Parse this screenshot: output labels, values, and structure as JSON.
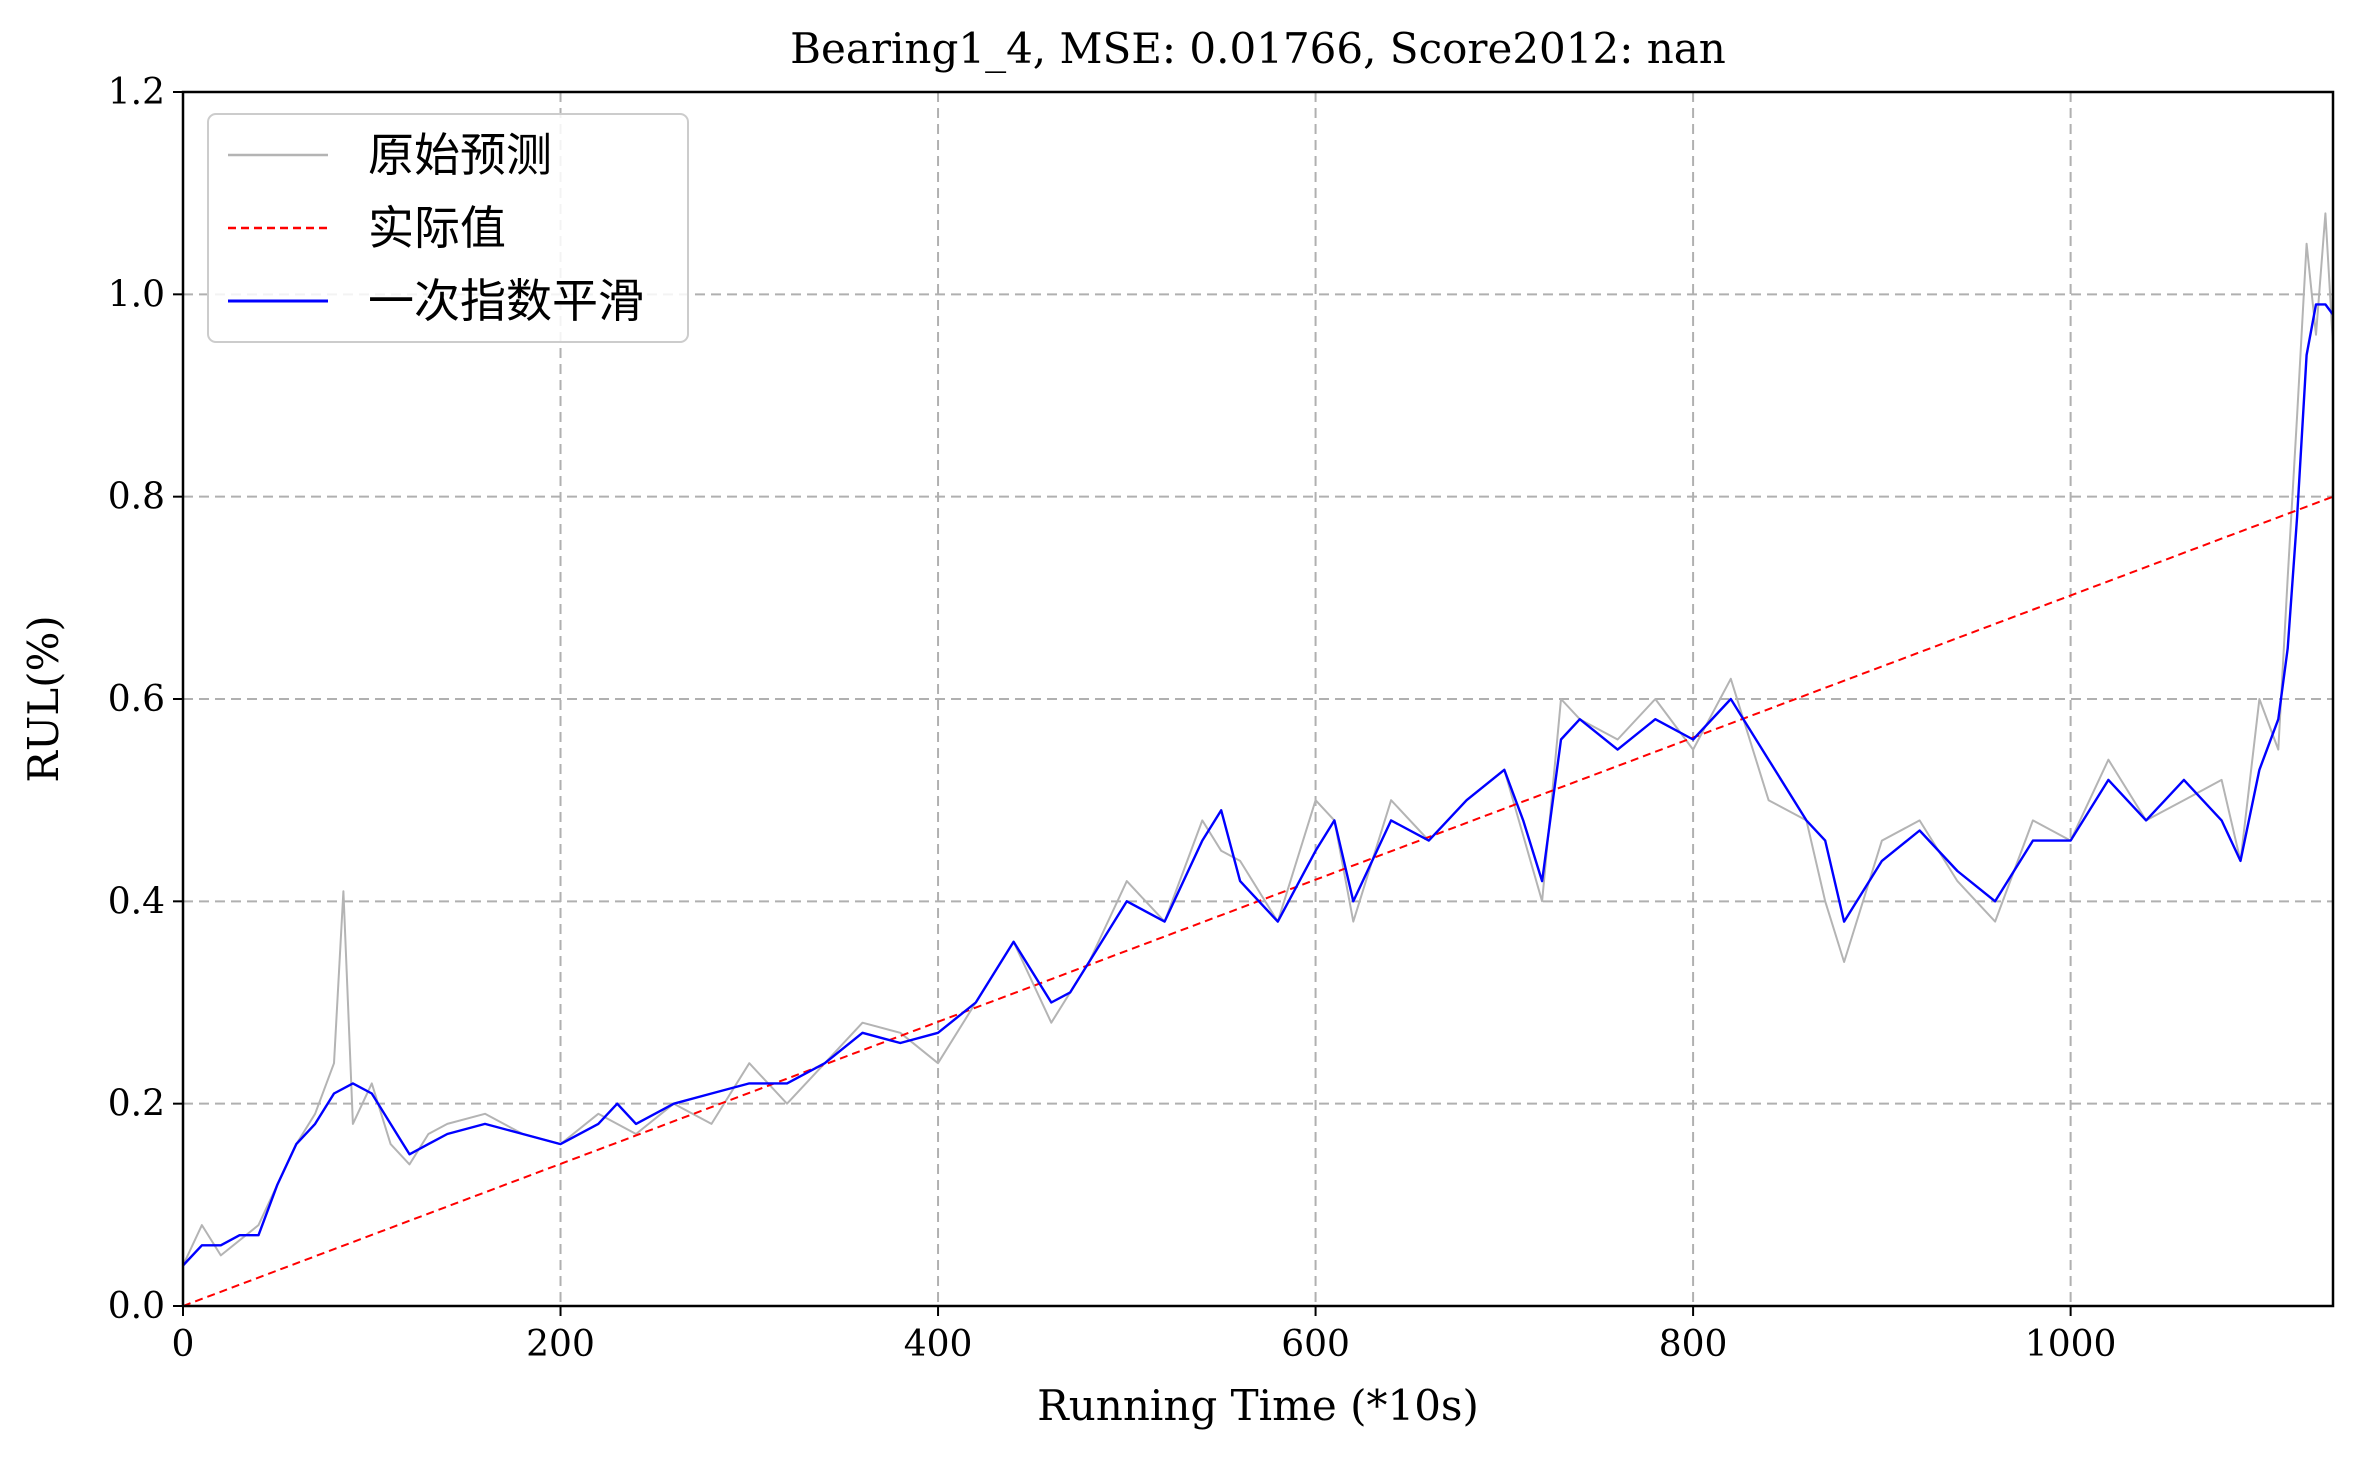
{
  "chart_data": {
    "type": "line",
    "title": "Bearing1_4, MSE: 0.01766, Score2012: nan",
    "xlabel": "Running Time (*10s)",
    "ylabel": "RUL(%)",
    "xlim": [
      0,
      1139
    ],
    "ylim": [
      0,
      1.2
    ],
    "x_ticks": [
      0,
      200,
      400,
      600,
      800,
      1000
    ],
    "x_tick_labels": [
      "0",
      "200",
      "400",
      "600",
      "800",
      "1000"
    ],
    "y_ticks": [
      0.0,
      0.2,
      0.4,
      0.6,
      0.8,
      1.0,
      1.2
    ],
    "y_tick_labels": [
      "0.0",
      "0.2",
      "0.4",
      "0.6",
      "0.8",
      "1.0",
      "1.2"
    ],
    "grid": true,
    "legend_position": "top-left",
    "series": [
      {
        "name": "原始预测",
        "color": "#b4b4b4",
        "style": "solid",
        "x": [
          0,
          10,
          20,
          40,
          50,
          60,
          70,
          80,
          85,
          90,
          100,
          110,
          120,
          130,
          140,
          160,
          180,
          200,
          220,
          240,
          260,
          280,
          300,
          320,
          340,
          360,
          380,
          400,
          420,
          440,
          460,
          480,
          500,
          520,
          540,
          550,
          560,
          580,
          600,
          610,
          620,
          640,
          660,
          680,
          700,
          720,
          730,
          740,
          760,
          780,
          800,
          820,
          840,
          860,
          870,
          880,
          900,
          920,
          940,
          960,
          980,
          1000,
          1020,
          1040,
          1060,
          1080,
          1090,
          1100,
          1110,
          1115,
          1120,
          1125,
          1130,
          1135,
          1139
        ],
        "y": [
          0.04,
          0.08,
          0.05,
          0.08,
          0.12,
          0.16,
          0.19,
          0.24,
          0.41,
          0.18,
          0.22,
          0.16,
          0.14,
          0.17,
          0.18,
          0.19,
          0.17,
          0.16,
          0.19,
          0.17,
          0.2,
          0.18,
          0.24,
          0.2,
          0.24,
          0.28,
          0.27,
          0.24,
          0.3,
          0.36,
          0.28,
          0.34,
          0.42,
          0.38,
          0.48,
          0.45,
          0.44,
          0.38,
          0.5,
          0.48,
          0.38,
          0.5,
          0.46,
          0.5,
          0.53,
          0.4,
          0.6,
          0.58,
          0.56,
          0.6,
          0.55,
          0.62,
          0.5,
          0.48,
          0.4,
          0.34,
          0.46,
          0.48,
          0.42,
          0.38,
          0.48,
          0.46,
          0.54,
          0.48,
          0.5,
          0.52,
          0.44,
          0.6,
          0.55,
          0.72,
          0.88,
          1.05,
          0.96,
          1.08,
          0.95
        ]
      },
      {
        "name": "实际值",
        "color": "#ff0000",
        "style": "dashed",
        "x": [
          0,
          1139
        ],
        "y": [
          0.0,
          0.8
        ]
      },
      {
        "name": "一次指数平滑",
        "color": "#0000ff",
        "style": "solid",
        "x": [
          0,
          10,
          20,
          30,
          40,
          50,
          60,
          70,
          80,
          90,
          100,
          110,
          120,
          130,
          140,
          160,
          180,
          200,
          220,
          230,
          240,
          260,
          280,
          300,
          320,
          340,
          360,
          380,
          400,
          420,
          440,
          460,
          470,
          480,
          500,
          520,
          540,
          550,
          560,
          580,
          600,
          610,
          620,
          640,
          660,
          680,
          700,
          710,
          720,
          730,
          740,
          760,
          780,
          800,
          820,
          840,
          860,
          870,
          880,
          900,
          920,
          940,
          960,
          980,
          1000,
          1020,
          1040,
          1060,
          1080,
          1090,
          1100,
          1110,
          1115,
          1120,
          1125,
          1130,
          1135,
          1139
        ],
        "y": [
          0.04,
          0.06,
          0.06,
          0.07,
          0.07,
          0.12,
          0.16,
          0.18,
          0.21,
          0.22,
          0.21,
          0.18,
          0.15,
          0.16,
          0.17,
          0.18,
          0.17,
          0.16,
          0.18,
          0.2,
          0.18,
          0.2,
          0.21,
          0.22,
          0.22,
          0.24,
          0.27,
          0.26,
          0.27,
          0.3,
          0.36,
          0.3,
          0.31,
          0.34,
          0.4,
          0.38,
          0.46,
          0.49,
          0.42,
          0.38,
          0.45,
          0.48,
          0.4,
          0.48,
          0.46,
          0.5,
          0.53,
          0.48,
          0.42,
          0.56,
          0.58,
          0.55,
          0.58,
          0.56,
          0.6,
          0.54,
          0.48,
          0.46,
          0.38,
          0.44,
          0.47,
          0.43,
          0.4,
          0.46,
          0.46,
          0.52,
          0.48,
          0.52,
          0.48,
          0.44,
          0.53,
          0.58,
          0.65,
          0.78,
          0.94,
          0.99,
          0.99,
          0.98
        ]
      }
    ]
  }
}
